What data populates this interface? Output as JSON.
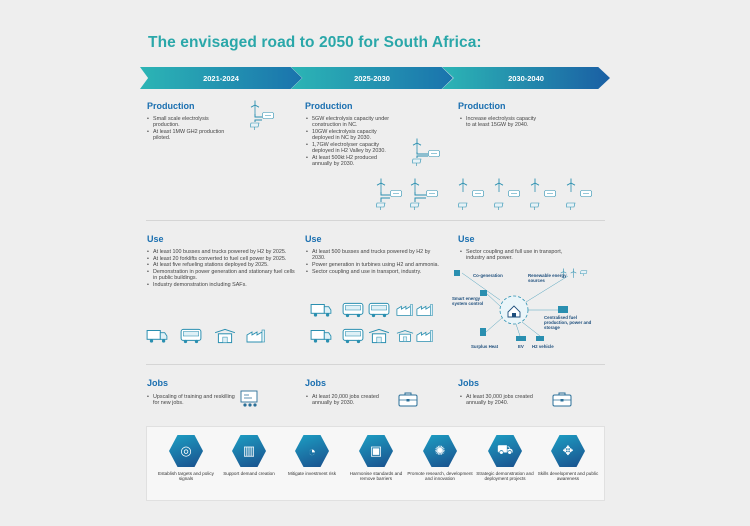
{
  "title": "The envisaged road to 2050 for South Africa:",
  "phases": [
    "2021-2024",
    "2025-2030",
    "2030-2040"
  ],
  "production": {
    "heading": "Production",
    "col1": [
      "Small scale electrolysis production.",
      "At least 1MW GH2 production piloted."
    ],
    "col2": [
      "5GW electrolysis capacity under construction in NC.",
      "10GW electrolysis capacity deployed in NC by 2030.",
      "1,7GW electrolyser capacity deployed in H2 Valley by 2030.",
      "At least 500kt H2 produced annually by 2030."
    ],
    "col3": [
      "Increase electrolysis capacity to at least 15GW by 2040."
    ]
  },
  "use": {
    "heading": "Use",
    "col1": [
      "At least 100 busses and trucks powered by H2 by 2025.",
      "At least 20 forklifts converted to fuel cell power by 2025.",
      "At least five refueling stations deployed by 2025.",
      "Demonstration in power generation and stationary fuel cells in public buildings.",
      "Industry demonstration including SAFs."
    ],
    "col2": [
      "At least 500 busses and trucks powered by H2 by 2030.",
      "Power generation in turbines using H2 and ammonia.",
      "Sector coupling and use in transport, industry."
    ],
    "col3": [
      "Sector coupling and full use in transport, industry and power."
    ],
    "diagram_labels": {
      "cogen": "Co-generation",
      "renewable": "Renewable energy sources",
      "smart": "Smart energy system control",
      "centralised": "Centralised fuel production, power and storage",
      "surplus": "Surplus Heat",
      "ev": "EV",
      "h2v": "H2 vehicle"
    }
  },
  "jobs": {
    "heading": "Jobs",
    "col1": [
      "Upscaling of training and reskilling for new jobs."
    ],
    "col2": [
      "At least 20,000 jobs created annually by 2030."
    ],
    "col3": [
      "At least 30,000 jobs created annually by 2040."
    ]
  },
  "enablers": [
    {
      "label": "Establish targets and policy signals",
      "icon": "target-icon"
    },
    {
      "label": "Support demand creation",
      "icon": "bar-chart-icon"
    },
    {
      "label": "Mitigate investment risk",
      "icon": "gauge-icon"
    },
    {
      "label": "Harmonise standards and remove barriers",
      "icon": "certificate-icon"
    },
    {
      "label": "Promote research, development and innovation",
      "icon": "lightbulb-gear-icon"
    },
    {
      "label": "Strategic demonstration and deployment projects",
      "icon": "truck-icon"
    },
    {
      "label": "Skills development and public awareness",
      "icon": "people-network-icon"
    }
  ],
  "colors": {
    "teal": "#2aa7a9",
    "blue": "#1a6fb0",
    "arrow_start": "#2cb5b5",
    "arrow_end": "#1a73ad"
  }
}
